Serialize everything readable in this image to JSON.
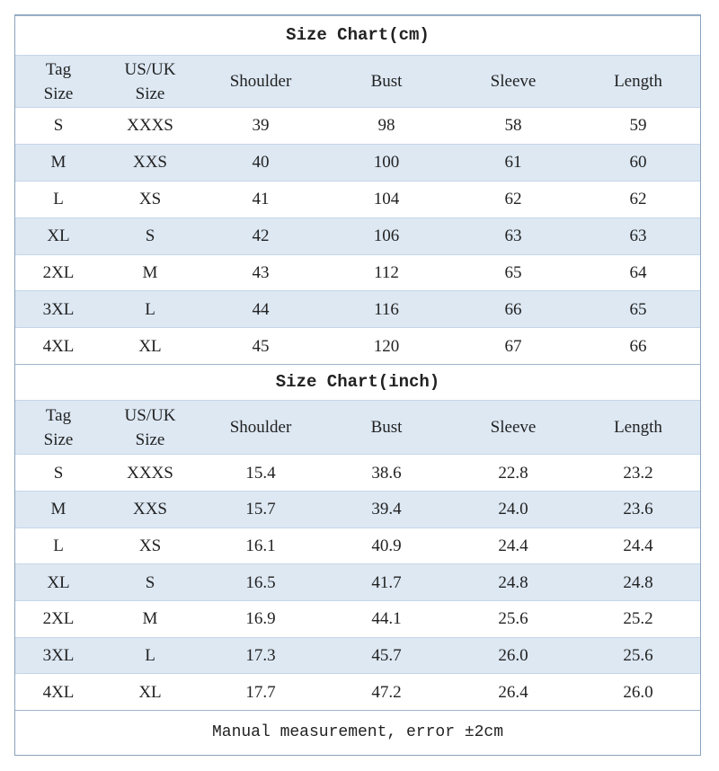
{
  "tables": [
    {
      "title": "Size Chart(cm)",
      "header": [
        "Tag\nSize",
        "US/UK\nSize",
        "Shoulder",
        "Bust",
        "Sleeve",
        "Length"
      ],
      "rows": [
        [
          "S",
          "XXXS",
          "39",
          "98",
          "58",
          "59"
        ],
        [
          "M",
          "XXS",
          "40",
          "100",
          "61",
          "60"
        ],
        [
          "L",
          "XS",
          "41",
          "104",
          "62",
          "62"
        ],
        [
          "XL",
          "S",
          "42",
          "106",
          "63",
          "63"
        ],
        [
          "2XL",
          "M",
          "43",
          "112",
          "65",
          "64"
        ],
        [
          "3XL",
          "L",
          "44",
          "116",
          "66",
          "65"
        ],
        [
          "4XL",
          "XL",
          "45",
          "120",
          "67",
          "66"
        ]
      ]
    },
    {
      "title": "Size Chart(inch)",
      "header": [
        "Tag\nSize",
        "US/UK\nSize",
        "Shoulder",
        "Bust",
        "Sleeve",
        "Length"
      ],
      "rows": [
        [
          "S",
          "XXXS",
          "15.4",
          "38.6",
          "22.8",
          "23.2"
        ],
        [
          "M",
          "XXS",
          "15.7",
          "39.4",
          "24.0",
          "23.6"
        ],
        [
          "L",
          "XS",
          "16.1",
          "40.9",
          "24.4",
          "24.4"
        ],
        [
          "XL",
          "S",
          "16.5",
          "41.7",
          "24.8",
          "24.8"
        ],
        [
          "2XL",
          "M",
          "16.9",
          "44.1",
          "25.6",
          "25.2"
        ],
        [
          "3XL",
          "L",
          "17.3",
          "45.7",
          "26.0",
          "25.6"
        ],
        [
          "4XL",
          "XL",
          "17.7",
          "47.2",
          "26.4",
          "26.0"
        ]
      ]
    }
  ],
  "note": "Manual measurement, error ±2cm"
}
